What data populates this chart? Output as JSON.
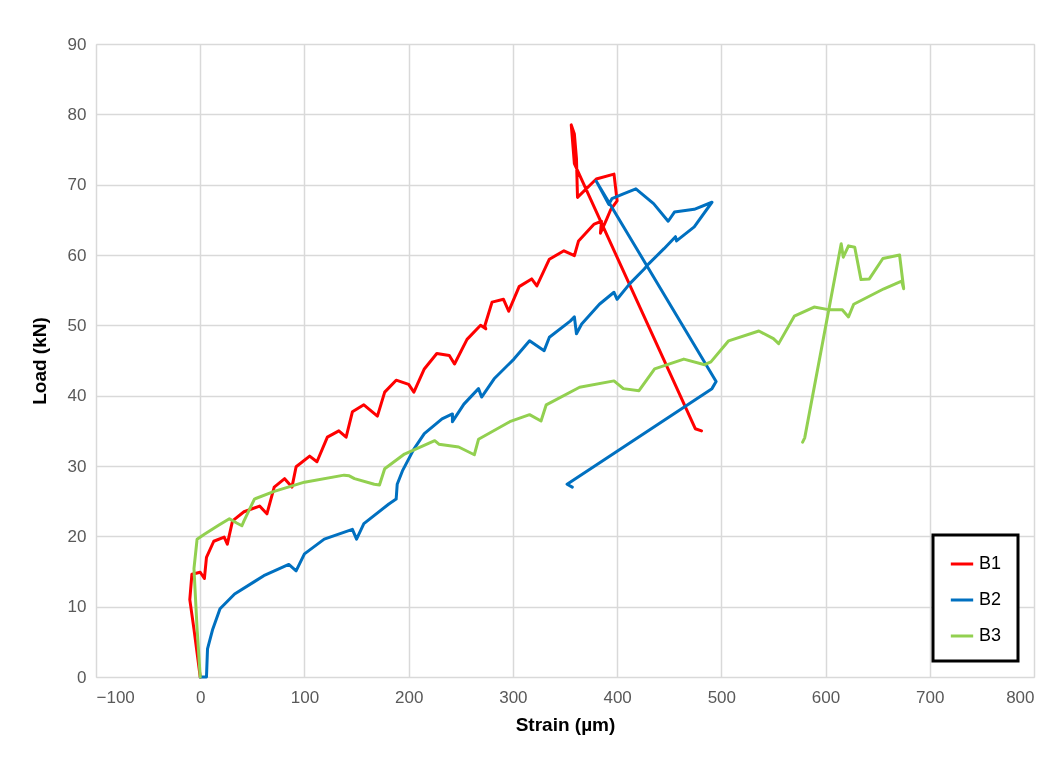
{
  "chart_data": {
    "type": "line",
    "xlabel": "Strain (µm)",
    "ylabel": "Load (kN)",
    "xlim": [
      -100,
      800
    ],
    "xticks": [
      -100,
      0,
      100,
      200,
      300,
      400,
      500,
      600,
      700,
      800
    ],
    "ylim": [
      0,
      90
    ],
    "yticks": [
      0,
      10,
      20,
      30,
      40,
      50,
      60,
      70,
      80,
      90
    ],
    "grid": true,
    "legend": "bottom right",
    "marker": "none",
    "line_style": "solid",
    "series": [
      {
        "name": "B1",
        "color": "#ff0000",
        "x": [
          0,
          -6,
          -10,
          -8,
          0,
          4,
          6,
          13,
          23,
          26,
          31,
          42,
          57,
          64,
          71,
          81,
          88,
          92,
          105,
          112,
          122,
          133,
          140,
          146,
          157,
          170,
          177,
          188,
          200,
          205,
          215,
          227,
          239,
          244,
          256,
          269,
          274,
          273,
          280,
          291,
          296,
          306,
          318,
          323,
          335,
          349,
          359,
          363,
          378,
          385,
          384,
          390,
          394,
          400,
          397,
          380,
          362,
          361,
          359,
          356,
          359,
          475,
          481
        ],
        "values": [
          0,
          6.8,
          11,
          14.6,
          14.9,
          14,
          17,
          19.3,
          19.9,
          18.9,
          22.2,
          23.5,
          24.3,
          23.2,
          27,
          28.2,
          27,
          29.9,
          31.4,
          30.6,
          34.1,
          35,
          34.1,
          37.7,
          38.7,
          37.1,
          40.5,
          42.2,
          41.6,
          40.5,
          43.8,
          46,
          45.7,
          44.5,
          48,
          50,
          49.5,
          49.9,
          53.3,
          53.7,
          52,
          55.5,
          56.6,
          55.6,
          59.4,
          60.6,
          59.9,
          62,
          64.4,
          64.8,
          63.1,
          65.1,
          66.5,
          67.7,
          71.5,
          70.8,
          68.2,
          73.7,
          77.2,
          78.5,
          73,
          35.3,
          35
        ]
      },
      {
        "name": "B2",
        "color": "#0070c0",
        "x": [
          0,
          6,
          7,
          12,
          19,
          33,
          61,
          85,
          92,
          100,
          119,
          146,
          150,
          157,
          181,
          188,
          189,
          194,
          205,
          215,
          232,
          242,
          242,
          253,
          267,
          270,
          282,
          301,
          316,
          330,
          335,
          355,
          359,
          361,
          366,
          383,
          397,
          400,
          412,
          426,
          430,
          445,
          456,
          457,
          474,
          491,
          474,
          455,
          449,
          435,
          418,
          406,
          395,
          392,
          380,
          495,
          491,
          352,
          357
        ],
        "values": [
          0,
          0,
          4,
          6.8,
          9.7,
          11.8,
          14.4,
          16,
          15.1,
          17.5,
          19.6,
          21,
          19.6,
          21.8,
          24.6,
          25.3,
          27.4,
          29.3,
          32.4,
          34.6,
          36.7,
          37.4,
          36.3,
          38.8,
          41,
          39.8,
          42.4,
          45.2,
          47.8,
          46.4,
          48.3,
          50.6,
          51.2,
          48.8,
          50.2,
          53,
          54.7,
          53.7,
          55.9,
          58,
          58.7,
          60.9,
          62.6,
          62,
          64,
          67.5,
          66.5,
          66.1,
          64.8,
          67.3,
          69.4,
          68.7,
          68,
          67.2,
          70.5,
          42,
          41,
          27.4,
          27
        ]
      },
      {
        "name": "B3",
        "color": "#92d050",
        "x": [
          0,
          -3,
          -6,
          -4,
          -3,
          4,
          18,
          28,
          35,
          40,
          42,
          52,
          71,
          100,
          138,
          143,
          148,
          167,
          172,
          177,
          196,
          225,
          229,
          248,
          263,
          267,
          297,
          316,
          327,
          332,
          364,
          397,
          406,
          421,
          436,
          464,
          484,
          490,
          507,
          536,
          550,
          555,
          570,
          589,
          604,
          616,
          622,
          627,
          656,
          673,
          675,
          671,
          655,
          642,
          634,
          628,
          622,
          617,
          615,
          580,
          578
        ],
        "values": [
          0,
          6.8,
          15.4,
          18.2,
          19.6,
          20.3,
          21.6,
          22.5,
          21.9,
          21.5,
          22.2,
          25.3,
          26.4,
          27.7,
          28.7,
          28.6,
          28.2,
          27.4,
          27.3,
          29.6,
          31.7,
          33.6,
          33.1,
          32.7,
          31.6,
          33.8,
          36.3,
          37.3,
          36.4,
          38.7,
          41.2,
          42.1,
          41,
          40.7,
          43.8,
          45.2,
          44.4,
          44.8,
          47.8,
          49.2,
          48.1,
          47.4,
          51.3,
          52.6,
          52.2,
          52.2,
          51.2,
          53,
          55.2,
          56.3,
          55.2,
          60,
          59.5,
          56.6,
          56.5,
          61.1,
          61.3,
          59.7,
          61.6,
          34,
          33.4
        ]
      }
    ]
  }
}
